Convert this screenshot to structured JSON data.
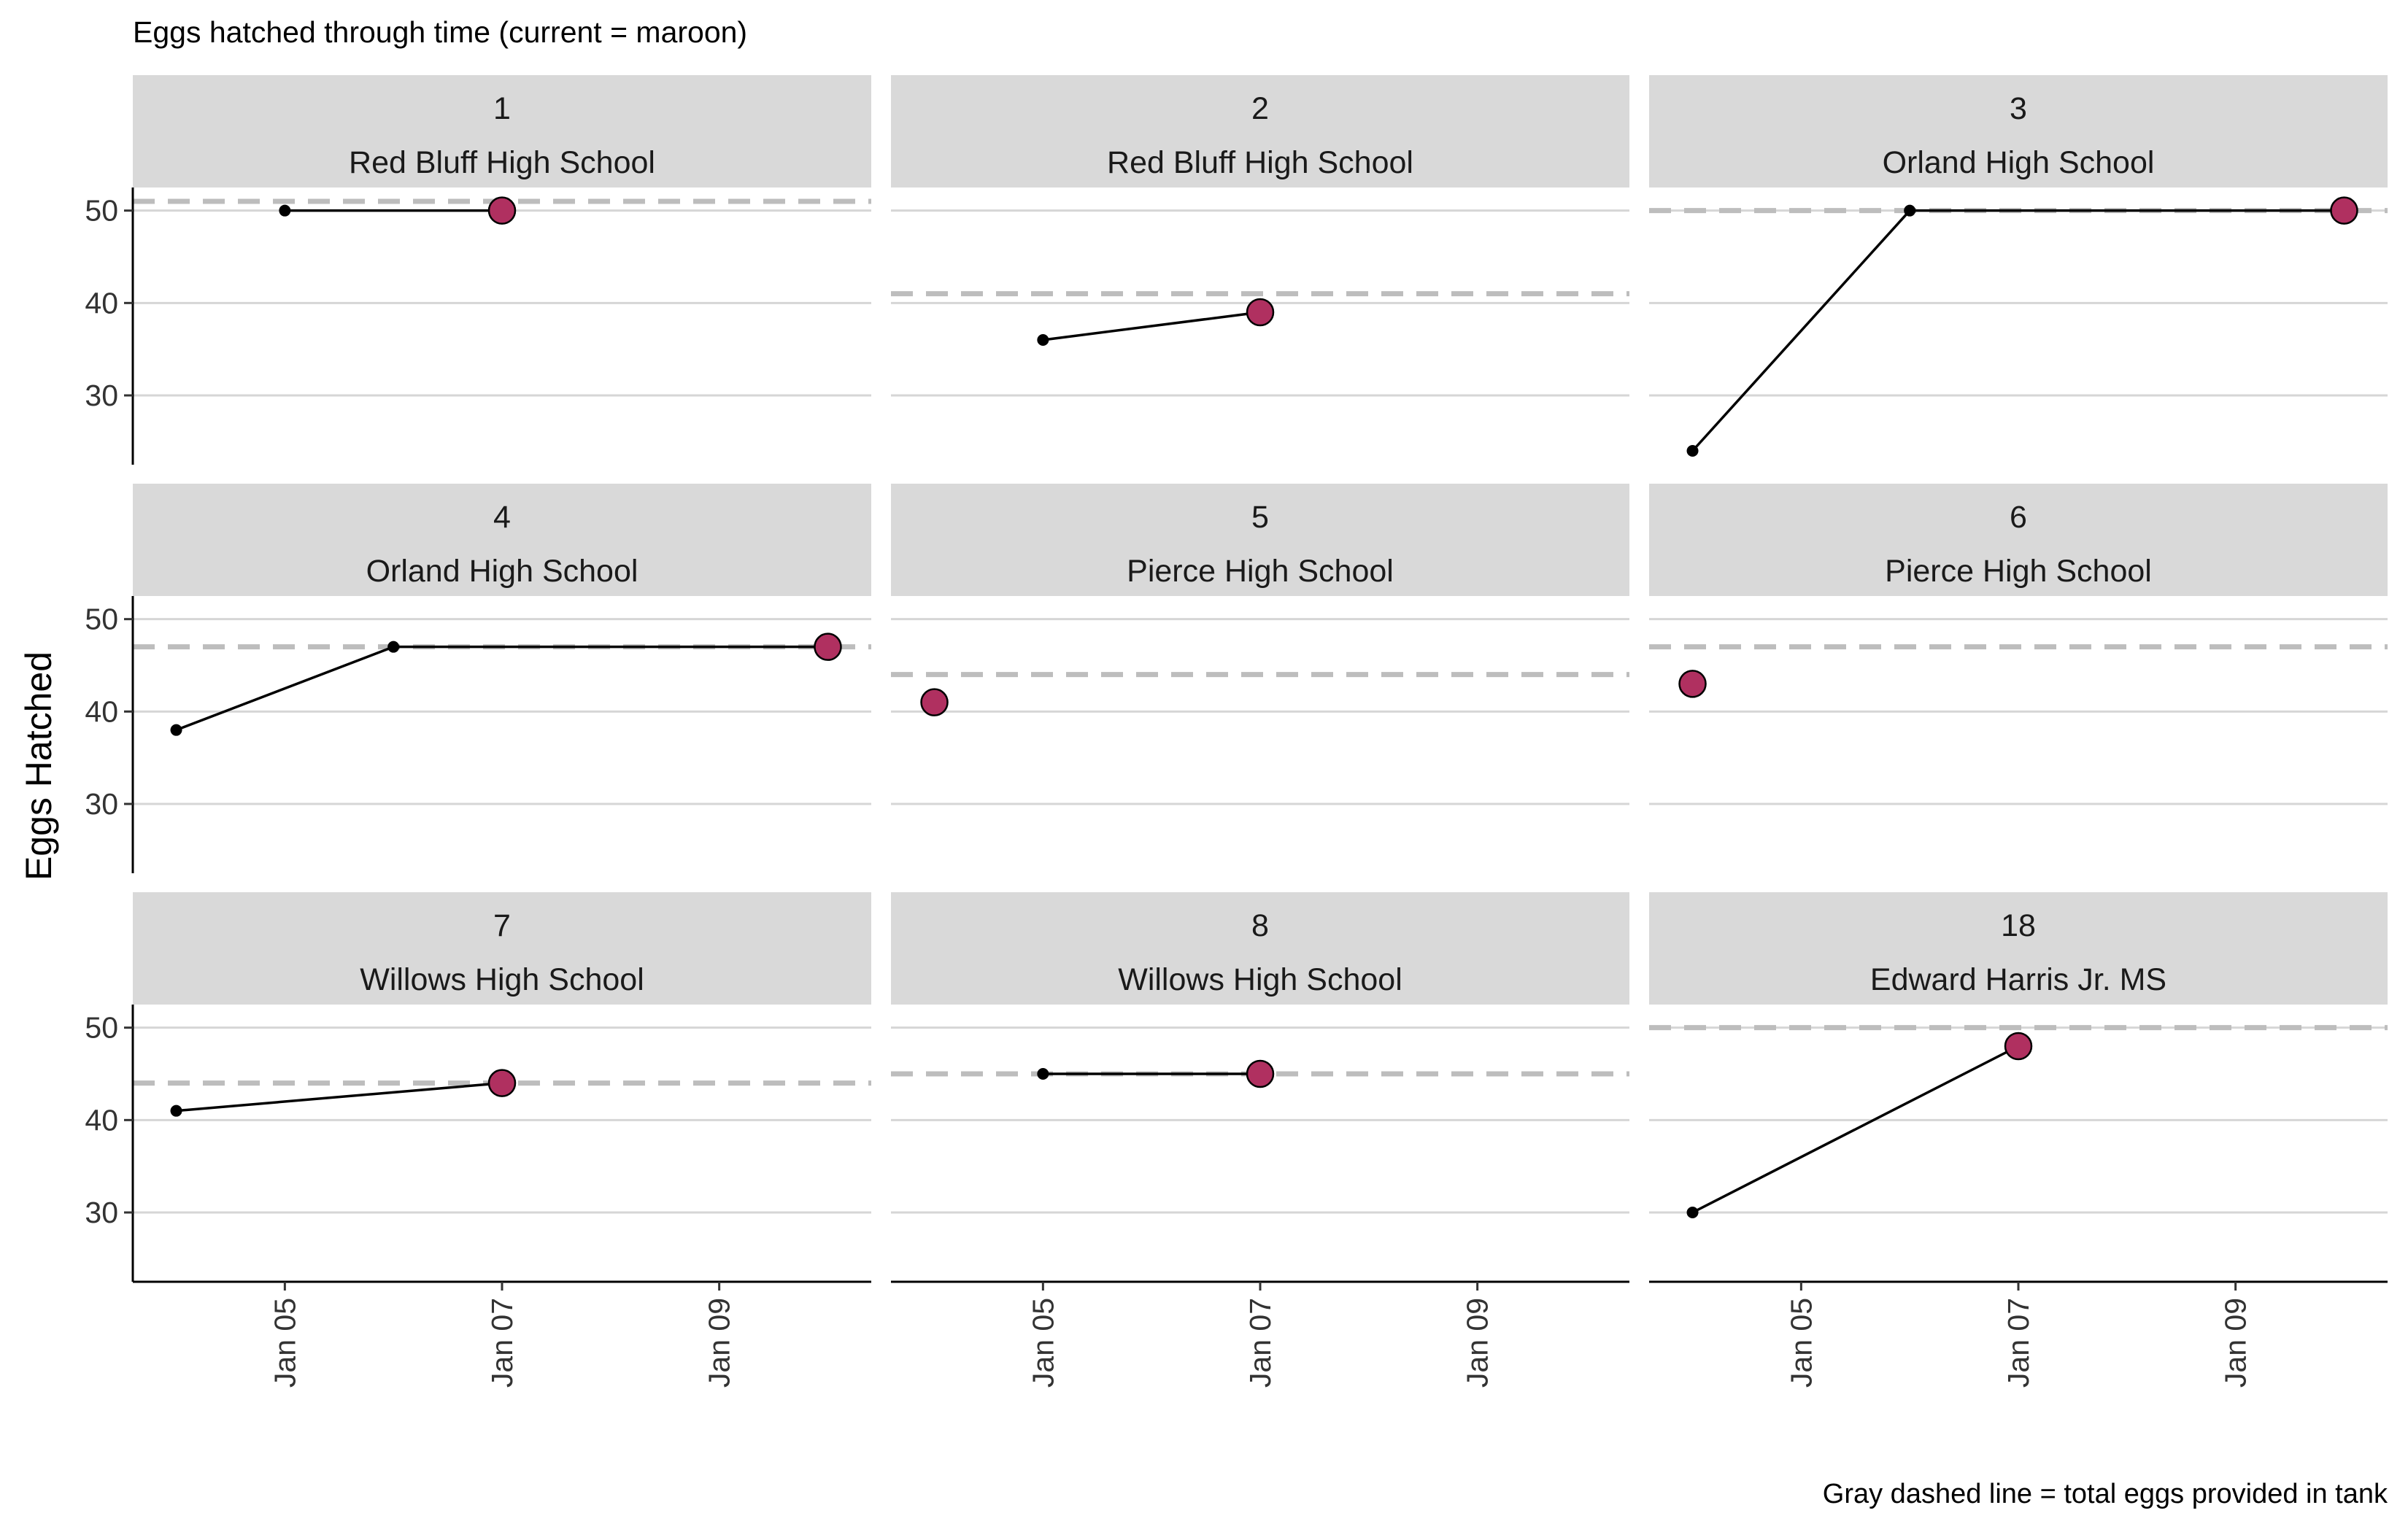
{
  "chart_data": {
    "type": "line",
    "title": "Eggs hatched through time (current = maroon)",
    "ylabel": "Eggs Hatched",
    "xlabel": "",
    "caption": "Gray dashed line = total eggs provided in tank",
    "ylim": [
      22.5,
      52.5
    ],
    "yticks": [
      30,
      40,
      50
    ],
    "xlim_days": [
      3.6,
      10.4
    ],
    "xticks": [
      {
        "day": 5,
        "label": "Jan 05"
      },
      {
        "day": 7,
        "label": "Jan 07"
      },
      {
        "day": 9,
        "label": "Jan 09"
      }
    ],
    "colors": {
      "current": "#b03060",
      "line": "#000000",
      "total_line": "#bdbdbd",
      "strip": "#d9d9d9"
    },
    "panels": [
      {
        "id": "1",
        "school": "Red Bluff High School",
        "total_eggs": 51,
        "points": [
          {
            "day": 5,
            "value": 50
          },
          {
            "day": 7,
            "value": 50
          }
        ],
        "current": {
          "day": 7,
          "value": 50
        }
      },
      {
        "id": "2",
        "school": "Red Bluff High School",
        "total_eggs": 41,
        "points": [
          {
            "day": 5,
            "value": 36
          },
          {
            "day": 7,
            "value": 39
          }
        ],
        "current": {
          "day": 7,
          "value": 39
        }
      },
      {
        "id": "3",
        "school": "Orland High School",
        "total_eggs": 50,
        "points": [
          {
            "day": 4,
            "value": 24
          },
          {
            "day": 6,
            "value": 50
          },
          {
            "day": 10,
            "value": 50
          }
        ],
        "current": {
          "day": 10,
          "value": 50
        }
      },
      {
        "id": "4",
        "school": "Orland High School",
        "total_eggs": 47,
        "points": [
          {
            "day": 4,
            "value": 38
          },
          {
            "day": 6,
            "value": 47
          },
          {
            "day": 10,
            "value": 47
          }
        ],
        "current": {
          "day": 10,
          "value": 47
        }
      },
      {
        "id": "5",
        "school": "Pierce High School",
        "total_eggs": 44,
        "points": [
          {
            "day": 4,
            "value": 41
          }
        ],
        "current": {
          "day": 4,
          "value": 41
        }
      },
      {
        "id": "6",
        "school": "Pierce High School",
        "total_eggs": 47,
        "points": [
          {
            "day": 4,
            "value": 43
          }
        ],
        "current": {
          "day": 4,
          "value": 43
        }
      },
      {
        "id": "7",
        "school": "Willows High School",
        "total_eggs": 44,
        "points": [
          {
            "day": 4,
            "value": 41
          },
          {
            "day": 7,
            "value": 44
          }
        ],
        "current": {
          "day": 7,
          "value": 44
        }
      },
      {
        "id": "8",
        "school": "Willows High School",
        "total_eggs": 45,
        "points": [
          {
            "day": 5,
            "value": 45
          },
          {
            "day": 7,
            "value": 45
          }
        ],
        "current": {
          "day": 7,
          "value": 45
        }
      },
      {
        "id": "18",
        "school": "Edward Harris Jr. MS",
        "total_eggs": 50,
        "points": [
          {
            "day": 4,
            "value": 30
          },
          {
            "day": 7,
            "value": 48
          }
        ],
        "current": {
          "day": 7,
          "value": 48
        }
      }
    ]
  }
}
